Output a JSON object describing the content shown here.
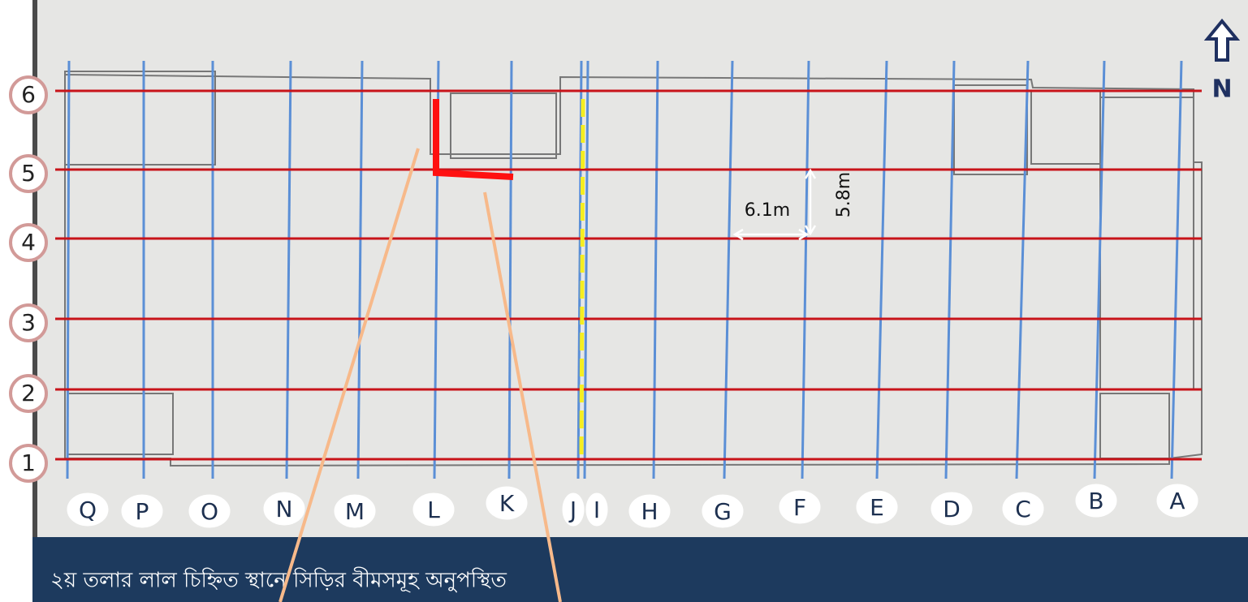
{
  "rows": [
    "6",
    "5",
    "4",
    "3",
    "2",
    "1"
  ],
  "columns": [
    "Q",
    "P",
    "O",
    "N",
    "M",
    "L",
    "K",
    "J",
    "I",
    "H",
    "G",
    "F",
    "E",
    "D",
    "C",
    "B",
    "A"
  ],
  "north": "N",
  "dimensions": {
    "width": "6.1m",
    "height": "5.8m"
  },
  "caption": "২য় তলার লাল চিহ্নিত স্থানে সিড়ির বীমসমূহ অনুপস্থিত"
}
